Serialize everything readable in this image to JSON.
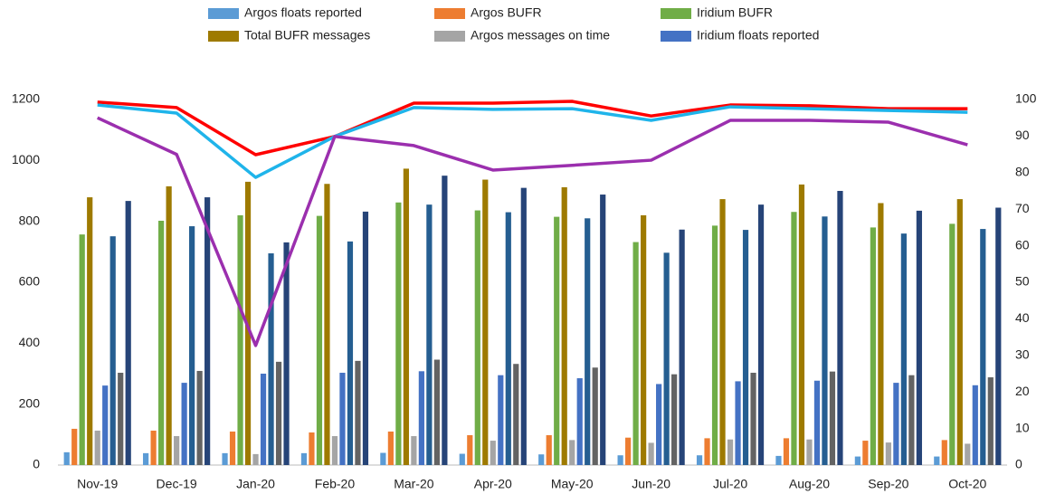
{
  "chart_data": {
    "type": "bar",
    "categories": [
      "Nov-19",
      "Dec-19",
      "Jan-20",
      "Feb-20",
      "Mar-20",
      "Apr-20",
      "May-20",
      "Jun-20",
      "Jul-20",
      "Aug-20",
      "Sep-20",
      "Oct-20"
    ],
    "ylim": [
      0,
      1200
    ],
    "yticks": [
      0,
      200,
      400,
      600,
      800,
      1000,
      1200
    ],
    "y2lim": [
      0,
      100
    ],
    "y2ticks": [
      0,
      10,
      20,
      30,
      40,
      50,
      60,
      70,
      80,
      90,
      100
    ],
    "grid": false,
    "legend": "top",
    "series": [
      {
        "name": "Argos floats reported",
        "color": "#5b9bd5",
        "values": [
          42,
          39,
          39,
          39,
          40,
          37,
          35,
          32,
          32,
          30,
          28,
          28
        ]
      },
      {
        "name": "Argos BUFR",
        "color": "#ed7d31",
        "values": [
          119,
          113,
          110,
          107,
          110,
          98,
          98,
          90,
          88,
          88,
          80,
          82
        ]
      },
      {
        "name": "Iridium BUFR",
        "color": "#70ad47",
        "values": [
          757,
          802,
          820,
          818,
          862,
          836,
          815,
          732,
          786,
          831,
          780,
          792
        ]
      },
      {
        "name": "Total BUFR messages",
        "color": "#9e7a00",
        "values": [
          879,
          915,
          930,
          923,
          973,
          937,
          912,
          820,
          873,
          921,
          860,
          873
        ]
      },
      {
        "name": "Argos messages on time",
        "color": "#a5a5a5",
        "values": [
          113,
          95,
          36,
          95,
          95,
          80,
          82,
          73,
          84,
          84,
          74,
          70
        ]
      },
      {
        "name": "Iridium floats reported",
        "color": "#4472c4",
        "values": [
          261,
          270,
          300,
          303,
          308,
          295,
          285,
          266,
          275,
          277,
          270,
          262
        ]
      },
      {
        "color": "#255e91",
        "values": [
          751,
          784,
          695,
          734,
          855,
          830,
          810,
          697,
          772,
          816,
          760,
          775
        ]
      },
      {
        "color": "#636363",
        "values": [
          303,
          309,
          339,
          342,
          346,
          332,
          320,
          298,
          303,
          307,
          295,
          288
        ]
      },
      {
        "color": "#264478",
        "values": [
          867,
          879,
          731,
          832,
          950,
          910,
          888,
          773,
          855,
          900,
          835,
          845
        ]
      },
      {
        "type": "line",
        "axis": "y2",
        "color": "#ff0000",
        "values": [
          99.3,
          97.8,
          84.9,
          89.9,
          99,
          99,
          99.5,
          95.5,
          98.5,
          98.3,
          97.5,
          97.5
        ]
      },
      {
        "type": "line",
        "axis": "y2",
        "color": "#1fb4ea",
        "values": [
          98.5,
          96.3,
          78.7,
          89.9,
          97.8,
          97.3,
          97.5,
          94.3,
          98,
          97.5,
          97,
          96.5
        ]
      },
      {
        "type": "line",
        "axis": "y2",
        "color": "#9b2fae",
        "values": [
          95,
          85,
          32.7,
          89.9,
          87.4,
          80.7,
          82,
          83.4,
          94.3,
          94.3,
          93.8,
          87.6
        ]
      }
    ]
  }
}
